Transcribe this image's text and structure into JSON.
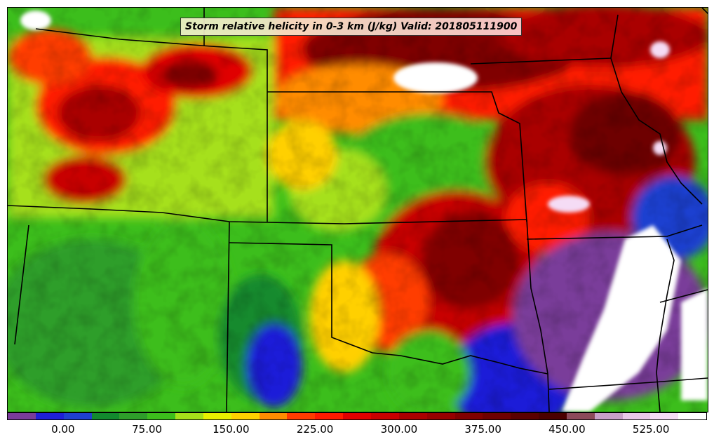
{
  "title": "Storm relative helicity in 0-3 km (J/kg) Valid: 201805111900",
  "map": {
    "variable": "Storm relative helicity 0-3 km",
    "units": "J/kg",
    "valid_time": "201805111900"
  },
  "colorbar": {
    "min": -50,
    "max": 575,
    "step": 25,
    "colors": [
      "#7a3c9a",
      "#1f1fd8",
      "#1f3fd0",
      "#128a2e",
      "#2e9e2a",
      "#3cbe1c",
      "#a6e01a",
      "#e8f000",
      "#ffd000",
      "#ff8c00",
      "#ff3c00",
      "#ff1a00",
      "#e00000",
      "#c80000",
      "#aa0000",
      "#960000",
      "#800000",
      "#6e0000",
      "#5a0000",
      "#4a0000",
      "#8c4a5a",
      "#c8a0c8",
      "#e8c8e8",
      "#f5dcf5",
      "#ffffff"
    ],
    "tick_values": [
      0,
      75,
      150,
      225,
      300,
      375,
      450,
      525
    ],
    "tick_labels": [
      "0.00",
      "75.00",
      "150.00",
      "225.00",
      "300.00",
      "375.00",
      "450.00",
      "525.00"
    ]
  }
}
